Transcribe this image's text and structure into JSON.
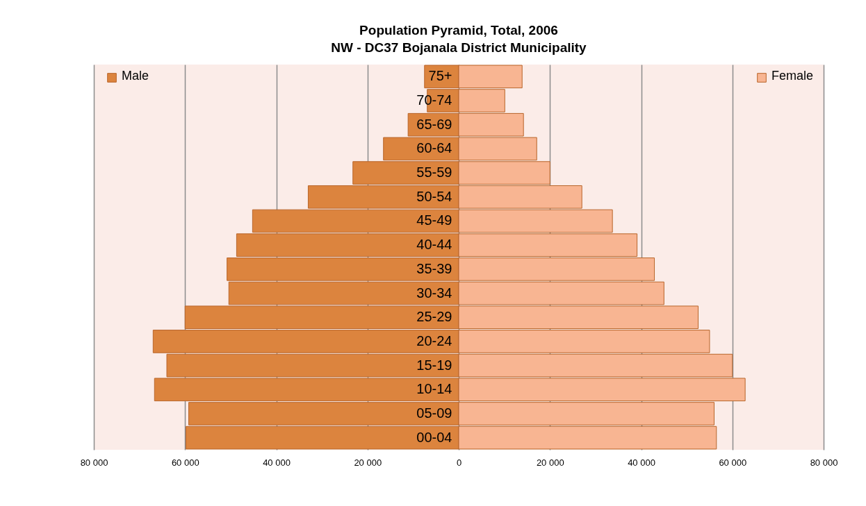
{
  "chart_data": {
    "type": "bar",
    "orientation": "horizontal",
    "title": "Population Pyramid, Total, 2006",
    "subtitle": "NW - DC37 Bojanala District Municipality",
    "categories": [
      "75+",
      "70-74",
      "65-69",
      "60-64",
      "55-59",
      "50-54",
      "45-49",
      "40-44",
      "35-39",
      "30-34",
      "25-29",
      "20-24",
      "15-19",
      "10-14",
      "05-09",
      "00-04"
    ],
    "series": [
      {
        "name": "Male",
        "color": "#dc843e",
        "values": [
          -7500,
          -6900,
          -11100,
          -16500,
          -23200,
          -33000,
          -45200,
          -48700,
          -50800,
          -50400,
          -60000,
          -67000,
          -64000,
          -66700,
          -59200,
          -59800
        ]
      },
      {
        "name": "Female",
        "color": "#f8b592",
        "values": [
          13900,
          10100,
          14200,
          17100,
          20000,
          27000,
          33700,
          39100,
          42900,
          45000,
          52500,
          55000,
          60000,
          62800,
          56000,
          56500
        ]
      }
    ],
    "xlim": [
      -80000,
      80000
    ],
    "xticks": [
      {
        "value": -80000,
        "label": "80 000"
      },
      {
        "value": -60000,
        "label": "60 000"
      },
      {
        "value": -40000,
        "label": "40 000"
      },
      {
        "value": -20000,
        "label": "20 000"
      },
      0,
      {
        "value": 20000,
        "label": "20 000"
      },
      {
        "value": 40000,
        "label": "40 000"
      },
      {
        "value": 60000,
        "label": "60 000"
      },
      {
        "value": 80000,
        "label": "80 000"
      }
    ],
    "grid": "x",
    "stacked": true,
    "legend": "top"
  }
}
